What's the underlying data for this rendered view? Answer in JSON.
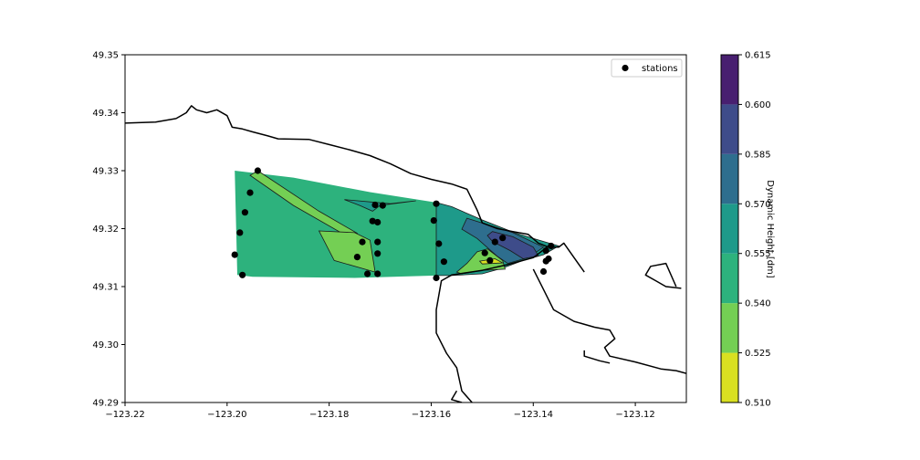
{
  "chart_data": {
    "type": "contour",
    "title": "",
    "xlabel": "",
    "ylabel": "",
    "xlim": [
      -123.22,
      -123.11
    ],
    "ylim": [
      49.29,
      49.35
    ],
    "xticks": [
      -123.22,
      -123.2,
      -123.18,
      -123.16,
      -123.14,
      -123.12
    ],
    "xtick_labels": [
      "−123.22",
      "−123.20",
      "−123.18",
      "−123.16",
      "−123.14",
      "−123.12"
    ],
    "yticks": [
      49.29,
      49.3,
      49.31,
      49.32,
      49.33,
      49.34,
      49.35
    ],
    "ytick_labels": [
      "49.29",
      "49.30",
      "49.31",
      "49.32",
      "49.33",
      "49.34",
      "49.35"
    ],
    "legend": {
      "entries": [
        "stations"
      ],
      "placement": "top-right"
    },
    "colorbar": {
      "label": "Dynamic Height [dm]",
      "levels": [
        0.51,
        0.525,
        0.54,
        0.555,
        0.57,
        0.585,
        0.6,
        0.615
      ],
      "tick_labels": [
        "0.510",
        "0.525",
        "0.540",
        "0.555",
        "0.570",
        "0.585",
        "0.600",
        "0.615"
      ],
      "colors": [
        "#d9e021",
        "#74cf54",
        "#2db27d",
        "#1e9a8a",
        "#2e6e8e",
        "#3e4c8a",
        "#481f70"
      ]
    },
    "contour_regions": [
      {
        "level_range": [
          0.54,
          0.555
        ],
        "polygon": [
          [
            -123.1985,
            49.33
          ],
          [
            -123.187,
            49.3288
          ],
          [
            -123.172,
            49.3263
          ],
          [
            -123.159,
            49.3245
          ],
          [
            -123.159,
            49.3119
          ],
          [
            -123.175,
            49.3115
          ],
          [
            -123.195,
            49.3117
          ],
          [
            -123.198,
            49.312
          ]
        ]
      },
      {
        "level_range": [
          0.555,
          0.57
        ],
        "polygon": [
          [
            -123.159,
            49.3245
          ],
          [
            -123.156,
            49.3238
          ],
          [
            -123.15,
            49.3215
          ],
          [
            -123.144,
            49.3194
          ],
          [
            -123.14,
            49.3183
          ],
          [
            -123.135,
            49.317
          ],
          [
            -123.138,
            49.3155
          ],
          [
            -123.142,
            49.3145
          ],
          [
            -123.146,
            49.3132
          ],
          [
            -123.15,
            49.3122
          ],
          [
            -123.156,
            49.3119
          ],
          [
            -123.159,
            49.3119
          ]
        ]
      },
      {
        "level_range": [
          0.525,
          0.54
        ],
        "polygon": [
          [
            -123.194,
            49.33
          ],
          [
            -123.182,
            49.323
          ],
          [
            -123.1745,
            49.3192
          ],
          [
            -123.1755,
            49.3182
          ],
          [
            -123.187,
            49.324
          ],
          [
            -123.1955,
            49.3292
          ]
        ]
      },
      {
        "level_range": [
          0.525,
          0.54
        ],
        "polygon": [
          [
            -123.182,
            49.3196
          ],
          [
            -123.175,
            49.3193
          ],
          [
            -123.172,
            49.318
          ],
          [
            -123.171,
            49.3125
          ],
          [
            -123.179,
            49.3145
          ]
        ]
      },
      {
        "level_range": [
          0.525,
          0.54
        ],
        "polygon": [
          [
            -123.155,
            49.3125
          ],
          [
            -123.153,
            49.314
          ],
          [
            -123.151,
            49.316
          ],
          [
            -123.149,
            49.3165
          ],
          [
            -123.146,
            49.3145
          ],
          [
            -123.1455,
            49.313
          ],
          [
            -123.15,
            49.3128
          ],
          [
            -123.154,
            49.3122
          ]
        ]
      },
      {
        "level_range": [
          0.51,
          0.525
        ],
        "polygon": [
          [
            -123.1505,
            49.3144
          ],
          [
            -123.1475,
            49.3148
          ],
          [
            -123.146,
            49.3141
          ],
          [
            -123.15,
            49.3139
          ]
        ]
      },
      {
        "level_range": [
          0.555,
          0.57
        ],
        "polygon": [
          [
            -123.177,
            49.325
          ],
          [
            -123.168,
            49.3243
          ],
          [
            -123.163,
            49.3248
          ],
          [
            -123.17,
            49.324
          ],
          [
            -123.1715,
            49.323
          ],
          [
            -123.174,
            49.324
          ]
        ]
      },
      {
        "level_range": [
          0.57,
          0.585
        ],
        "polygon": [
          [
            -123.153,
            49.3218
          ],
          [
            -123.149,
            49.3207
          ],
          [
            -123.144,
            49.3193
          ],
          [
            -123.138,
            49.3168
          ],
          [
            -123.141,
            49.315
          ],
          [
            -123.145,
            49.314
          ],
          [
            -123.147,
            49.3152
          ],
          [
            -123.151,
            49.3183
          ],
          [
            -123.154,
            49.3199
          ]
        ]
      },
      {
        "level_range": [
          0.585,
          0.6
        ],
        "polygon": [
          [
            -123.148,
            49.3195
          ],
          [
            -123.144,
            49.3186
          ],
          [
            -123.14,
            49.3168
          ],
          [
            -123.139,
            49.3153
          ],
          [
            -123.142,
            49.3148
          ],
          [
            -123.1445,
            49.3162
          ],
          [
            -123.148,
            49.3178
          ],
          [
            -123.149,
            49.3188
          ]
        ]
      }
    ],
    "stations": [
      [
        -123.194,
        49.33
      ],
      [
        -123.1955,
        49.3262
      ],
      [
        -123.1965,
        49.3228
      ],
      [
        -123.1975,
        49.3193
      ],
      [
        -123.1985,
        49.3155
      ],
      [
        -123.197,
        49.312
      ],
      [
        -123.171,
        49.3241
      ],
      [
        -123.1695,
        49.324
      ],
      [
        -123.1715,
        49.3213
      ],
      [
        -123.1705,
        49.3211
      ],
      [
        -123.1735,
        49.3177
      ],
      [
        -123.1705,
        49.3177
      ],
      [
        -123.1705,
        49.3157
      ],
      [
        -123.1745,
        49.3151
      ],
      [
        -123.1725,
        49.3122
      ],
      [
        -123.1705,
        49.3122
      ],
      [
        -123.159,
        49.3243
      ],
      [
        -123.1595,
        49.3214
      ],
      [
        -123.1585,
        49.3174
      ],
      [
        -123.1575,
        49.3143
      ],
      [
        -123.159,
        49.3115
      ],
      [
        -123.1495,
        49.3158
      ],
      [
        -123.1485,
        49.3145
      ],
      [
        -123.1475,
        49.3177
      ],
      [
        -123.146,
        49.3184
      ],
      [
        -123.1365,
        49.317
      ],
      [
        -123.1375,
        49.3162
      ],
      [
        -123.137,
        49.3148
      ],
      [
        -123.1375,
        49.3144
      ],
      [
        -123.138,
        49.3126
      ]
    ],
    "coastline": [
      [
        [
          -123.22,
          49.3382
        ],
        [
          -123.214,
          49.3384
        ],
        [
          -123.21,
          49.339
        ],
        [
          -123.208,
          49.34
        ],
        [
          -123.207,
          49.3412
        ],
        [
          -123.206,
          49.3405
        ],
        [
          -123.204,
          49.34
        ],
        [
          -123.202,
          49.3405
        ],
        [
          -123.2,
          49.3395
        ],
        [
          -123.199,
          49.3375
        ],
        [
          -123.197,
          49.3372
        ],
        [
          -123.195,
          49.3367
        ],
        [
          -123.192,
          49.336
        ],
        [
          -123.19,
          49.3355
        ],
        [
          -123.184,
          49.3354
        ],
        [
          -123.18,
          49.3345
        ],
        [
          -123.176,
          49.3336
        ],
        [
          -123.172,
          49.3326
        ],
        [
          -123.168,
          49.3312
        ],
        [
          -123.164,
          49.3295
        ],
        [
          -123.16,
          49.3285
        ],
        [
          -123.156,
          49.3277
        ],
        [
          -123.153,
          49.3268
        ],
        [
          -123.152,
          49.325
        ],
        [
          -123.151,
          49.3232
        ],
        [
          -123.15,
          49.321
        ],
        [
          -123.147,
          49.32
        ],
        [
          -123.144,
          49.3195
        ],
        [
          -123.141,
          49.319
        ],
        [
          -123.139,
          49.3175
        ],
        [
          -123.137,
          49.3168
        ],
        [
          -123.135,
          49.3168
        ],
        [
          -123.134,
          49.3175
        ],
        [
          -123.132,
          49.315
        ],
        [
          -123.13,
          49.3125
        ]
      ],
      [
        [
          -123.137,
          49.317
        ],
        [
          -123.14,
          49.315
        ],
        [
          -123.145,
          49.3138
        ],
        [
          -123.15,
          49.3128
        ],
        [
          -123.156,
          49.312
        ],
        [
          -123.158,
          49.311
        ],
        [
          -123.159,
          49.306
        ],
        [
          -123.159,
          49.302
        ],
        [
          -123.157,
          49.2985
        ],
        [
          -123.155,
          49.296
        ],
        [
          -123.154,
          49.292
        ],
        [
          -123.152,
          49.29
        ]
      ],
      [
        [
          -123.14,
          49.313
        ],
        [
          -123.138,
          49.3095
        ],
        [
          -123.136,
          49.306
        ],
        [
          -123.132,
          49.304
        ],
        [
          -123.128,
          49.303
        ],
        [
          -123.125,
          49.3025
        ],
        [
          -123.124,
          49.301
        ],
        [
          -123.126,
          49.2995
        ],
        [
          -123.125,
          49.298
        ],
        [
          -123.12,
          49.297
        ],
        [
          -123.115,
          49.2958
        ],
        [
          -123.112,
          49.2955
        ],
        [
          -123.11,
          49.295
        ]
      ],
      [
        [
          -123.13,
          49.299
        ],
        [
          -123.13,
          49.298
        ],
        [
          -123.127,
          49.2972
        ],
        [
          -123.125,
          49.2968
        ]
      ],
      [
        [
          -123.155,
          49.292
        ],
        [
          -123.156,
          49.2905
        ],
        [
          -123.154,
          49.29
        ]
      ],
      [
        [
          -123.112,
          49.31
        ],
        [
          -123.114,
          49.314
        ],
        [
          -123.117,
          49.3135
        ],
        [
          -123.118,
          49.312
        ],
        [
          -123.116,
          49.311
        ],
        [
          -123.114,
          49.31
        ],
        [
          -123.111,
          49.3097
        ]
      ]
    ],
    "colors": {
      "station_marker": "#000000",
      "coastline": "#000000",
      "contour_edge": "#1a1a1a",
      "axes": "#000000",
      "background": "#ffffff"
    }
  }
}
